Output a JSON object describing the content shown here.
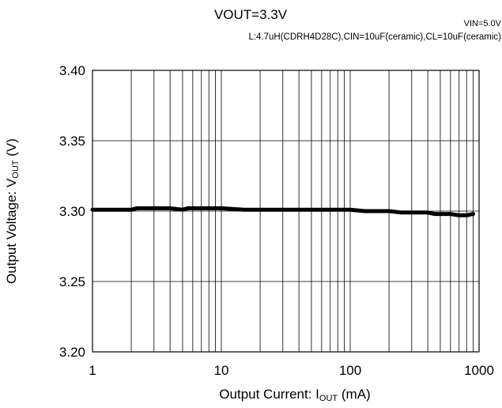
{
  "chart_data": {
    "type": "line",
    "title": "VOUT=3.3V",
    "condition_right": "VIN=5.0V",
    "subtitle": "L:4.7uH(CDRH4D28C),CIN=10uF(ceramic),CL=10uF(ceramic)",
    "xlabel_main": "Output Current: I",
    "xlabel_sub": "OUT",
    "xlabel_unit": " (mA)",
    "ylabel_main": "Output Voltage: V",
    "ylabel_sub": "OUT",
    "ylabel_unit": " (V)",
    "xscale": "log",
    "xlim": [
      1,
      1000
    ],
    "ylim": [
      3.2,
      3.4
    ],
    "grid": true,
    "x_ticks": [
      {
        "value": 1,
        "label": "1"
      },
      {
        "value": 10,
        "label": "10"
      },
      {
        "value": 100,
        "label": "100"
      },
      {
        "value": 1000,
        "label": "1000"
      }
    ],
    "y_ticks": [
      {
        "value": 3.4,
        "label": "3.40"
      },
      {
        "value": 3.35,
        "label": "3.35"
      },
      {
        "value": 3.3,
        "label": "3.30"
      },
      {
        "value": 3.25,
        "label": "3.25"
      },
      {
        "value": 3.2,
        "label": "3.20"
      }
    ],
    "series": [
      {
        "color": "#000000",
        "x": [
          1,
          1.5,
          2,
          2.2,
          3,
          4,
          5,
          5.5,
          6,
          8,
          10,
          15,
          20,
          30,
          50,
          80,
          100,
          130,
          160,
          200,
          250,
          300,
          400,
          450,
          600,
          700,
          800,
          900
        ],
        "y": [
          3.301,
          3.301,
          3.301,
          3.302,
          3.302,
          3.302,
          3.301,
          3.302,
          3.302,
          3.302,
          3.302,
          3.301,
          3.301,
          3.301,
          3.301,
          3.301,
          3.301,
          3.3,
          3.3,
          3.3,
          3.299,
          3.299,
          3.299,
          3.298,
          3.298,
          3.297,
          3.297,
          3.298
        ]
      }
    ]
  }
}
